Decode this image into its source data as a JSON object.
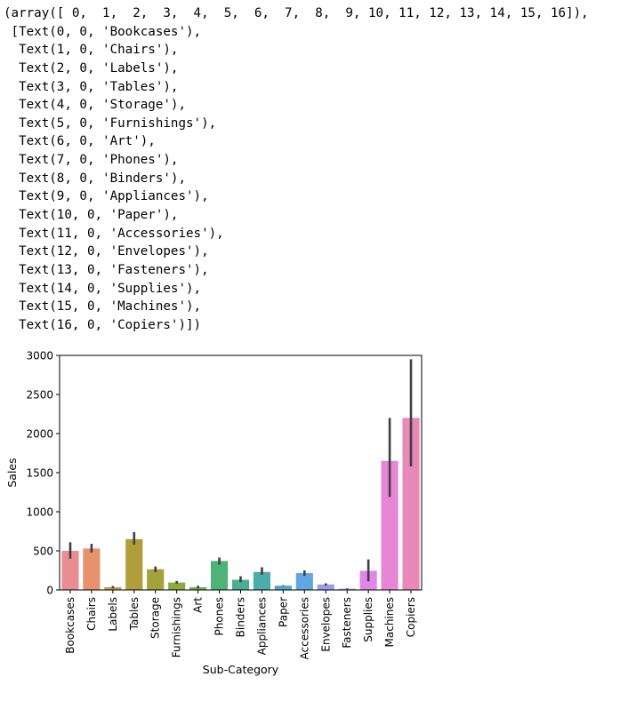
{
  "output": {
    "lines": [
      "(array([ 0,  1,  2,  3,  4,  5,  6,  7,  8,  9, 10, 11, 12, 13, 14, 15, 16]),",
      " [Text(0, 0, 'Bookcases'),",
      "  Text(1, 0, 'Chairs'),",
      "  Text(2, 0, 'Labels'),",
      "  Text(3, 0, 'Tables'),",
      "  Text(4, 0, 'Storage'),",
      "  Text(5, 0, 'Furnishings'),",
      "  Text(6, 0, 'Art'),",
      "  Text(7, 0, 'Phones'),",
      "  Text(8, 0, 'Binders'),",
      "  Text(9, 0, 'Appliances'),",
      "  Text(10, 0, 'Paper'),",
      "  Text(11, 0, 'Accessories'),",
      "  Text(12, 0, 'Envelopes'),",
      "  Text(13, 0, 'Fasteners'),",
      "  Text(14, 0, 'Supplies'),",
      "  Text(15, 0, 'Machines'),",
      "  Text(16, 0, 'Copiers')])"
    ]
  },
  "chart_data": {
    "type": "bar",
    "xlabel": "Sub-Category",
    "ylabel": "Sales",
    "ylim": [
      0,
      3000
    ],
    "yticks": [
      0,
      500,
      1000,
      1500,
      2000,
      2500,
      3000
    ],
    "categories": [
      "Bookcases",
      "Chairs",
      "Labels",
      "Tables",
      "Storage",
      "Furnishings",
      "Art",
      "Phones",
      "Binders",
      "Appliances",
      "Paper",
      "Accessories",
      "Envelopes",
      "Fasteners",
      "Supplies",
      "Machines",
      "Copiers"
    ],
    "values": [
      500,
      530,
      35,
      650,
      265,
      95,
      35,
      370,
      130,
      230,
      55,
      215,
      70,
      15,
      245,
      1650,
      2200
    ],
    "errors": [
      [
        400,
        610
      ],
      [
        480,
        590
      ],
      [
        20,
        50
      ],
      [
        580,
        740
      ],
      [
        230,
        300
      ],
      [
        80,
        115
      ],
      [
        20,
        55
      ],
      [
        325,
        415
      ],
      [
        100,
        175
      ],
      [
        195,
        290
      ],
      [
        50,
        60
      ],
      [
        180,
        250
      ],
      [
        55,
        85
      ],
      [
        10,
        20
      ],
      [
        110,
        390
      ],
      [
        1190,
        2200
      ],
      [
        1580,
        2950
      ]
    ],
    "colors": [
      "#e98d93",
      "#e6926c",
      "#cb9a48",
      "#b29d3c",
      "#a2a33b",
      "#8dab3c",
      "#6bb24d",
      "#4fb277",
      "#4bae93",
      "#4cabab",
      "#4eaac2",
      "#61a6e0",
      "#9a9de9",
      "#c28deb",
      "#e085e9",
      "#e786d6",
      "#e88ab8"
    ],
    "grid": false,
    "legend": "none"
  }
}
